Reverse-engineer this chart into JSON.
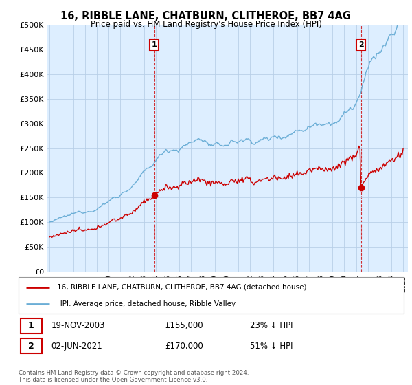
{
  "title": "16, RIBBLE LANE, CHATBURN, CLITHEROE, BB7 4AG",
  "subtitle": "Price paid vs. HM Land Registry's House Price Index (HPI)",
  "legend_line1": "16, RIBBLE LANE, CHATBURN, CLITHEROE, BB7 4AG (detached house)",
  "legend_line2": "HPI: Average price, detached house, Ribble Valley",
  "annotation1_label": "1",
  "annotation1_date": "19-NOV-2003",
  "annotation1_price": "£155,000",
  "annotation1_hpi": "23% ↓ HPI",
  "annotation2_label": "2",
  "annotation2_date": "02-JUN-2021",
  "annotation2_price": "£170,000",
  "annotation2_hpi": "51% ↓ HPI",
  "footer": "Contains HM Land Registry data © Crown copyright and database right 2024.\nThis data is licensed under the Open Government Licence v3.0.",
  "hpi_color": "#6baed6",
  "price_color": "#cc0000",
  "annotation_color": "#cc0000",
  "bg_color": "#ffffff",
  "plot_bg_color": "#ddeeff",
  "grid_color": "#b8cfe8",
  "ylim": [
    0,
    500000
  ],
  "yticks": [
    0,
    50000,
    100000,
    150000,
    200000,
    250000,
    300000,
    350000,
    400000,
    450000,
    500000
  ],
  "sale1_year": 2003.88,
  "sale1_price": 155000,
  "sale2_year": 2021.42,
  "sale2_price": 170000
}
